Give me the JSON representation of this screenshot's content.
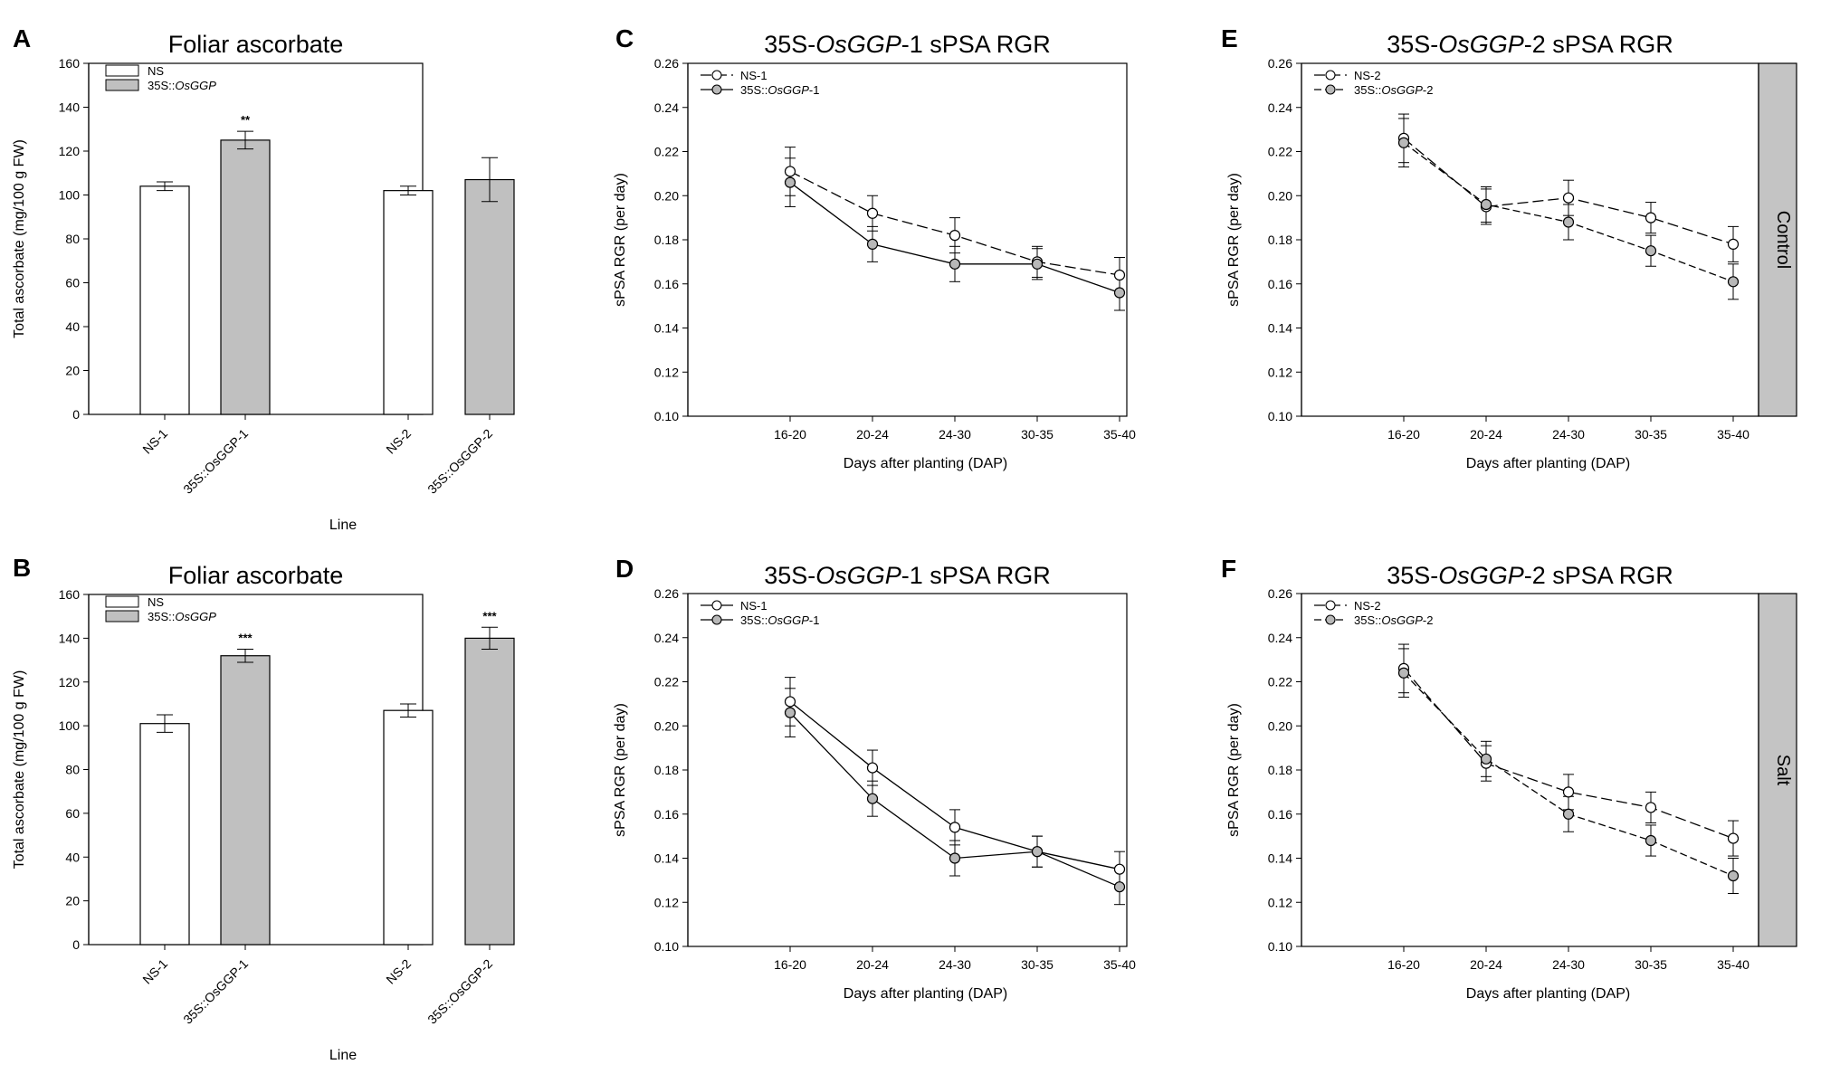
{
  "colors": {
    "ns_bar": "#ffffff",
    "transgenic_bar": "#c0c0c0",
    "ns_marker": "#ffffff",
    "transgenic_marker": "#b8b8b8",
    "side_box": "#c4c4c4",
    "axis": "#000000"
  },
  "side_labels": {
    "control": "Control",
    "salt": "Salt"
  },
  "chart_data": [
    {
      "panel": "A",
      "type": "bar",
      "title": "Foliar ascorbate",
      "xlabel": "Line",
      "ylabel": "Total ascorbate (mg/100 g FW)",
      "ylim": [
        0,
        160
      ],
      "yticks": [
        "0",
        "20",
        "40",
        "60",
        "80",
        "100",
        "120",
        "140",
        "160"
      ],
      "legend": [
        {
          "name": "NS",
          "italic": ""
        },
        {
          "name": "35S::",
          "italic": "OsGGP"
        }
      ],
      "categories": [
        "NS-1",
        "35S::OsGGP-1",
        "NS-2",
        "35S::OsGGP-2"
      ],
      "groups": [
        "NS",
        "35S::OsGGP",
        "NS",
        "35S::OsGGP"
      ],
      "values": [
        104,
        125,
        102,
        107
      ],
      "errors": [
        2,
        4,
        2,
        10
      ],
      "significance": [
        "",
        "**",
        "",
        ""
      ]
    },
    {
      "panel": "B",
      "type": "bar",
      "title": "Foliar ascorbate",
      "xlabel": "Line",
      "ylabel": "Total ascorbate (mg/100 g FW)",
      "ylim": [
        0,
        160
      ],
      "yticks": [
        "0",
        "20",
        "40",
        "60",
        "80",
        "100",
        "120",
        "140",
        "160"
      ],
      "legend": [
        {
          "name": "NS",
          "italic": ""
        },
        {
          "name": "35S::",
          "italic": "OsGGP"
        }
      ],
      "categories": [
        "NS-1",
        "35S::OsGGP-1",
        "NS-2",
        "35S::OsGGP-2"
      ],
      "groups": [
        "NS",
        "35S::OsGGP",
        "NS",
        "35S::OsGGP"
      ],
      "values": [
        101,
        132,
        107,
        140
      ],
      "errors": [
        4,
        3,
        3,
        5
      ],
      "significance": [
        "",
        "***",
        "",
        "***"
      ]
    },
    {
      "panel": "C",
      "type": "line",
      "title_parts": [
        "35S-",
        "OsGGP",
        "-1 sPSA RGR"
      ],
      "xlabel": "Days after planting (DAP)",
      "ylabel": "sPSA RGR (per day)",
      "ylim": [
        0.1,
        0.26
      ],
      "yticks": [
        "0.10",
        "0.12",
        "0.14",
        "0.16",
        "0.18",
        "0.20",
        "0.22",
        "0.24",
        "0.26"
      ],
      "categories": [
        "16-20",
        "20-24",
        "24-30",
        "30-35",
        "35-40"
      ],
      "series": [
        {
          "name": "NS-1",
          "italic": "",
          "suffix": "",
          "marker": "open",
          "dash": "long",
          "values": [
            0.211,
            0.192,
            0.182,
            0.17,
            0.164
          ],
          "errors": [
            0.011,
            0.008,
            0.008,
            0.007,
            0.008
          ]
        },
        {
          "name": "35S::",
          "italic": "OsGGP",
          "suffix": "-1",
          "marker": "filled",
          "dash": "solid",
          "values": [
            0.206,
            0.178,
            0.169,
            0.169,
            0.156
          ],
          "errors": [
            0.011,
            0.008,
            0.008,
            0.007,
            0.008
          ]
        }
      ]
    },
    {
      "panel": "D",
      "type": "line",
      "title_parts": [
        "35S-",
        "OsGGP",
        "-1 sPSA RGR"
      ],
      "xlabel": "Days after planting (DAP)",
      "ylabel": "sPSA RGR (per day)",
      "ylim": [
        0.1,
        0.26
      ],
      "yticks": [
        "0.10",
        "0.12",
        "0.14",
        "0.16",
        "0.18",
        "0.20",
        "0.22",
        "0.24",
        "0.26"
      ],
      "categories": [
        "16-20",
        "20-24",
        "24-30",
        "30-35",
        "35-40"
      ],
      "series": [
        {
          "name": "NS-1",
          "italic": "",
          "suffix": "",
          "marker": "open",
          "dash": "solid",
          "values": [
            0.211,
            0.181,
            0.154,
            0.143,
            0.135
          ],
          "errors": [
            0.011,
            0.008,
            0.008,
            0.007,
            0.008
          ]
        },
        {
          "name": "35S::",
          "italic": "OsGGP",
          "suffix": "-1",
          "marker": "filled",
          "dash": "solid",
          "values": [
            0.206,
            0.167,
            0.14,
            0.143,
            0.127
          ],
          "errors": [
            0.011,
            0.008,
            0.008,
            0.007,
            0.008
          ]
        }
      ]
    },
    {
      "panel": "E",
      "type": "line",
      "title_parts": [
        "35S-",
        "OsGGP",
        "-2 sPSA RGR"
      ],
      "xlabel": "Days after planting (DAP)",
      "ylabel": "sPSA RGR (per day)",
      "ylim": [
        0.1,
        0.26
      ],
      "yticks": [
        "0.10",
        "0.12",
        "0.14",
        "0.16",
        "0.18",
        "0.20",
        "0.22",
        "0.24",
        "0.26"
      ],
      "categories": [
        "16-20",
        "20-24",
        "24-30",
        "30-35",
        "35-40"
      ],
      "series": [
        {
          "name": "NS-2",
          "italic": "",
          "suffix": "",
          "marker": "open",
          "dash": "long",
          "values": [
            0.226,
            0.195,
            0.199,
            0.19,
            0.178
          ],
          "errors": [
            0.011,
            0.008,
            0.008,
            0.007,
            0.008
          ]
        },
        {
          "name": "35S::",
          "italic": "OsGGP",
          "suffix": "-2",
          "marker": "filled",
          "dash": "dash",
          "values": [
            0.224,
            0.196,
            0.188,
            0.175,
            0.161
          ],
          "errors": [
            0.011,
            0.008,
            0.008,
            0.007,
            0.008
          ]
        }
      ]
    },
    {
      "panel": "F",
      "type": "line",
      "title_parts": [
        "35S-",
        "OsGGP",
        "-2 sPSA RGR"
      ],
      "xlabel": "Days after planting (DAP)",
      "ylabel": "sPSA RGR (per day)",
      "ylim": [
        0.1,
        0.26
      ],
      "yticks": [
        "0.10",
        "0.12",
        "0.14",
        "0.16",
        "0.18",
        "0.20",
        "0.22",
        "0.24",
        "0.26"
      ],
      "categories": [
        "16-20",
        "20-24",
        "24-30",
        "30-35",
        "35-40"
      ],
      "series": [
        {
          "name": "NS-2",
          "italic": "",
          "suffix": "",
          "marker": "open",
          "dash": "long",
          "values": [
            0.226,
            0.183,
            0.17,
            0.163,
            0.149
          ],
          "errors": [
            0.011,
            0.008,
            0.008,
            0.007,
            0.008
          ]
        },
        {
          "name": "35S::",
          "italic": "OsGGP",
          "suffix": "-2",
          "marker": "filled",
          "dash": "dash",
          "values": [
            0.224,
            0.185,
            0.16,
            0.148,
            0.132
          ],
          "errors": [
            0.011,
            0.008,
            0.008,
            0.007,
            0.008
          ]
        }
      ]
    }
  ]
}
